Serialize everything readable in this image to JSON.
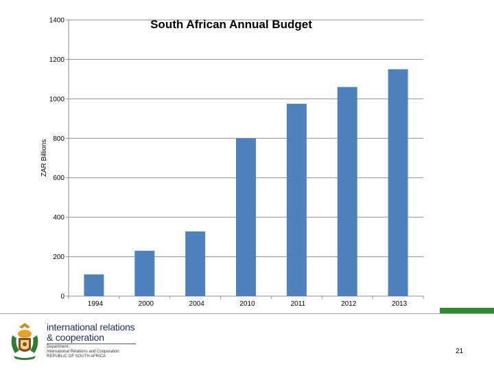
{
  "chart_data": {
    "type": "bar",
    "title": "South African Annual Budget",
    "ylabel": "ZAR Billions",
    "xlabel": "",
    "categories": [
      "1994",
      "2000",
      "2004",
      "2010",
      "2011",
      "2012",
      "2013"
    ],
    "values": [
      110,
      230,
      328,
      800,
      975,
      1060,
      1150
    ],
    "ylim": [
      0,
      1400
    ],
    "yticks": [
      0,
      200,
      400,
      600,
      800,
      1000,
      1200,
      1400
    ],
    "grid": true,
    "bar_color": "#4f81bd",
    "grid_color": "#8c8c8c"
  },
  "footer": {
    "org_line_1": "international relations",
    "org_line_2": "& cooperation",
    "dept_line_1": "Department:",
    "dept_line_2": "International Relations and Cooperation",
    "dept_line_3": "REPUBLIC OF SOUTH AFRICA",
    "page_number": "21",
    "accent_color": "#2e8b2e"
  }
}
